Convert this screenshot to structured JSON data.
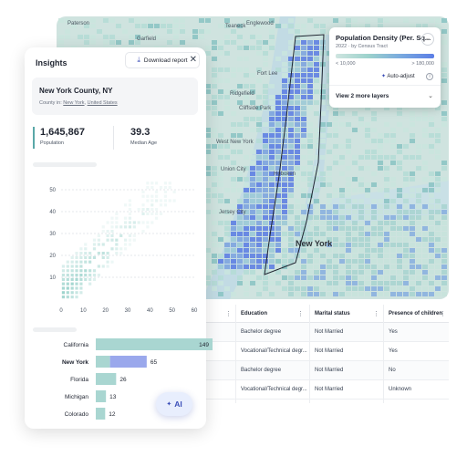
{
  "map": {
    "place_labels": [
      "Paterson",
      "Teaneck",
      "Englewood",
      "Garfield",
      "Fort Lee",
      "Ridgefield",
      "Cliffside Park",
      "West New York",
      "Union City",
      "Hoboken",
      "Jersey City",
      "New York"
    ],
    "density_legend": {
      "title": "Population Density (Per. Sq...",
      "subtitle": "2022 · by Census Tract",
      "low_label": "< 10,000",
      "high_label": "> 180,000",
      "auto_adjust_label": "Auto-adjust",
      "more_layers_label": "View 2 more layers",
      "ramp_colors": [
        "#cfe5e0",
        "#9cd2cc",
        "#79a9df",
        "#5b7ee6"
      ]
    }
  },
  "table": {
    "headers": [
      "Education",
      "Marital status",
      "Presence of children"
    ],
    "rows": [
      [
        "Bachelor degree",
        "Not Married",
        "Yes"
      ],
      [
        "Vocational/Technical degr...",
        "Not Married",
        "Yes"
      ],
      [
        "Bachelor degree",
        "Not Married",
        "No"
      ],
      [
        "Vocational/Technical degr...",
        "Not Married",
        "Unknown"
      ]
    ]
  },
  "insights": {
    "title": "Insights",
    "download_label": "Download report",
    "region": {
      "name": "New York County, NY",
      "in_label": "County in:",
      "state_link": "New York",
      "country_link": "United States"
    },
    "population": {
      "value": "1,645,867",
      "label": "Population"
    },
    "median_age": {
      "value": "39.3",
      "label": "Median Age"
    },
    "ai_label": "AI"
  },
  "chart_data": [
    {
      "type": "heatmap",
      "x_ticks": [
        0,
        10,
        20,
        30,
        40,
        50,
        60
      ],
      "y_ticks": [
        10,
        20,
        30,
        40,
        50
      ],
      "xlim": [
        0,
        60
      ],
      "ylim": [
        0,
        55
      ],
      "color": "#9cd3cc"
    },
    {
      "type": "bar",
      "categories": [
        "California",
        "New York",
        "Florida",
        "Michigan",
        "Colorado"
      ],
      "values": [
        149,
        65,
        26,
        13,
        12
      ],
      "highlight": "New York",
      "colors": {
        "default": "#a9d6d1",
        "highlight": "#9aa8ec"
      }
    }
  ]
}
